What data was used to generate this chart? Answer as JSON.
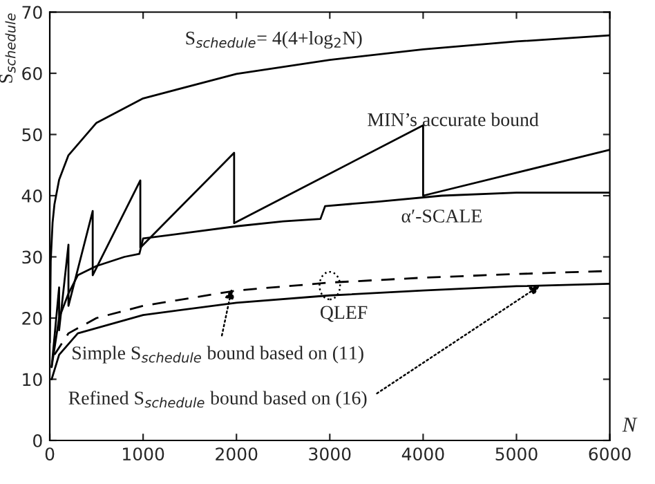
{
  "chart_data": {
    "type": "line",
    "xlabel": "N",
    "ylabel": "S$_{schedule}$",
    "xlim": [
      0,
      6000
    ],
    "ylim": [
      0,
      70
    ],
    "xticks": [
      0,
      1000,
      2000,
      3000,
      4000,
      5000,
      6000
    ],
    "yticks": [
      0,
      10,
      20,
      30,
      40,
      50,
      60,
      70
    ],
    "grid": false,
    "series": [
      {
        "color": "#000000",
        "line_style": "solid",
        "x": [
          1,
          10,
          30,
          50,
          100,
          200,
          500,
          1000,
          2000,
          3000,
          4000,
          5000,
          6000
        ],
        "values": [
          16,
          29.3,
          35.6,
          38.6,
          42.6,
          46.6,
          51.9,
          55.9,
          59.9,
          62.2,
          63.9,
          65.2,
          66.2
        ]
      },
      {
        "color": "#000000",
        "line_style": "solid",
        "x": [
          20,
          100,
          100,
          200,
          200,
          460,
          460,
          970,
          970,
          1975,
          1975,
          4000,
          4000,
          6000
        ],
        "values": [
          12,
          25,
          18,
          32,
          22,
          37.5,
          27,
          42.5,
          31.5,
          47,
          35.5,
          51.5,
          40,
          47.5
        ]
      },
      {
        "color": "#000000",
        "line_style": "solid",
        "x": [
          20,
          100,
          200,
          300,
          500,
          800,
          960,
          1000,
          1500,
          2000,
          2500,
          2900,
          2950,
          3500,
          4200,
          5000,
          6000
        ],
        "values": [
          12,
          20,
          24,
          27,
          28.5,
          30,
          30.5,
          33,
          34,
          35,
          35.8,
          36.2,
          38.3,
          39,
          40,
          40.5,
          40.5
        ]
      },
      {
        "color": "#000000",
        "line_style": "dashed",
        "x": [
          50,
          200,
          500,
          1000,
          2000,
          3000,
          4000,
          5000,
          6000
        ],
        "values": [
          14,
          17.5,
          20,
          22,
          24.5,
          25.8,
          26.6,
          27.2,
          27.7
        ]
      },
      {
        "color": "#000000",
        "line_style": "solid",
        "x": [
          20,
          100,
          300,
          1000,
          2000,
          3000,
          4000,
          5000,
          6000
        ],
        "values": [
          10,
          14,
          17.5,
          20.5,
          22.5,
          23.7,
          24.5,
          25.2,
          25.6
        ]
      }
    ],
    "annotations": [
      "S$_{schedule}$= 4(4+log$_{2}$N)",
      "MIN’s accurate bound",
      "α′-SCALE",
      {
        "text": "QLEF",
        "x": 3000,
        "y": 25.3
      },
      {
        "text": "Simple S$_{schedule}$ bound based on (11)",
        "x": 1950,
        "y": 24.8
      },
      {
        "text": "Refined S$_{schedule}$ bound based on (16)",
        "x": 5250,
        "y": 25.3
      }
    ]
  }
}
